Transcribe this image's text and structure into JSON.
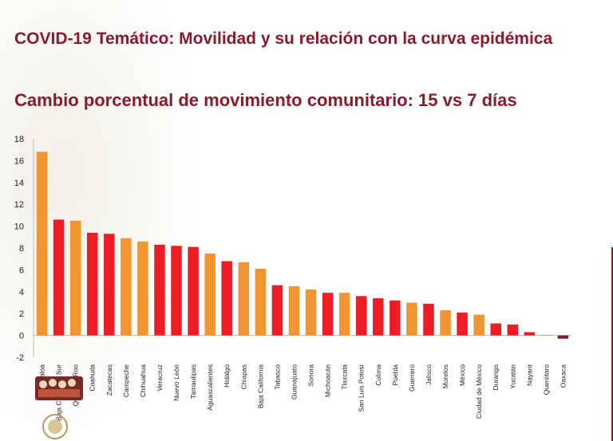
{
  "title": "COVID-19 Temático: Movilidad y su relación con la curva epidémica",
  "subtitle": "Cambio porcentual de movimiento comunitario: 15 vs 7 días",
  "colors": {
    "orange": "#f0952f",
    "red": "#ee1c25",
    "maroon": "#8b1a2b"
  },
  "logo_icon": "government-mural-logo-icon",
  "seal_icon": "mexico-seal-icon",
  "chart_data": {
    "type": "bar",
    "title": "",
    "xlabel": "",
    "ylabel": "",
    "ylim": [
      -2,
      18
    ],
    "yticks": [
      -2,
      0,
      2,
      4,
      6,
      8,
      10,
      12,
      14,
      16,
      18
    ],
    "grid": false,
    "categories": [
      "Sinaloa",
      "Baja California Sur",
      "Quintana Roo",
      "Coahuila",
      "Zacatecas",
      "Campeche",
      "Chihuahua",
      "Veracruz",
      "Nuevo León",
      "Tamaulipas",
      "Aguascalientes",
      "Hidalgo",
      "Chiapas",
      "Baja California",
      "Tabasco",
      "Guanajuato",
      "Sonora",
      "Michoacán",
      "Tlaxcala",
      "San Luis Potosí",
      "Colima",
      "Puebla",
      "Guerrero",
      "Jalisco",
      "Morelos",
      "México",
      "Ciudad de México",
      "Durango",
      "Yucatán",
      "Nayarit",
      "Querétaro",
      "Oaxaca"
    ],
    "values": [
      16.8,
      10.6,
      10.5,
      9.4,
      9.3,
      8.9,
      8.6,
      8.3,
      8.2,
      8.1,
      7.5,
      6.8,
      6.7,
      6.1,
      4.6,
      4.5,
      4.2,
      3.9,
      3.9,
      3.6,
      3.4,
      3.2,
      3.0,
      2.9,
      2.3,
      2.1,
      1.9,
      1.1,
      1.0,
      0.3,
      0.05,
      -0.3
    ],
    "bar_colors": [
      "#f0952f",
      "#ee1c25",
      "#f0952f",
      "#ee1c25",
      "#ee1c25",
      "#f0952f",
      "#f0952f",
      "#ee1c25",
      "#ee1c25",
      "#ee1c25",
      "#f0952f",
      "#ee1c25",
      "#f0952f",
      "#f0952f",
      "#ee1c25",
      "#f0952f",
      "#f0952f",
      "#ee1c25",
      "#f0952f",
      "#ee1c25",
      "#ee1c25",
      "#ee1c25",
      "#f0952f",
      "#ee1c25",
      "#f0952f",
      "#ee1c25",
      "#f0952f",
      "#ee1c25",
      "#ee1c25",
      "#ee1c25",
      "#f0952f",
      "#8b1a2b"
    ]
  }
}
